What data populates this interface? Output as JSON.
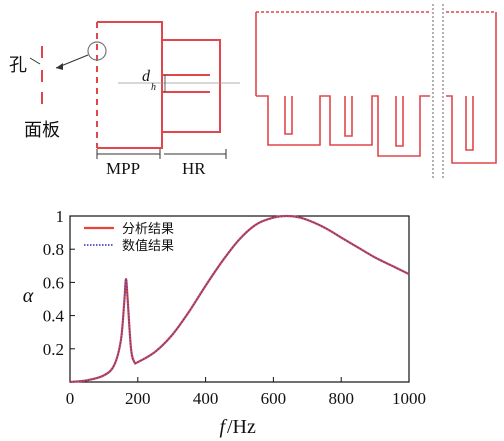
{
  "schematic": {
    "hole_label": "孔",
    "panel_label": "面板",
    "mpp_label": "MPP",
    "hr_label": "HR",
    "dim_symbol": "d",
    "dim_subscript": "h",
    "colors": {
      "structure": "#e0474c",
      "guide": "#999999"
    }
  },
  "chart_data": {
    "type": "line",
    "title": "",
    "xlabel_symbol": "f",
    "xlabel_unit": "/Hz",
    "ylabel": "α",
    "xlim": [
      0,
      1000
    ],
    "ylim": [
      0,
      1
    ],
    "xticks": [
      0,
      200,
      400,
      600,
      800,
      1000
    ],
    "yticks": [
      0.2,
      0.4,
      0.6,
      0.8,
      1
    ],
    "ytick_labels": [
      "0.2",
      "0.4",
      "0.6",
      "0.8",
      "1"
    ],
    "legend_position": "top-left",
    "grid": false,
    "series": [
      {
        "name": "分析结果",
        "color": "#e8443a",
        "style": "solid",
        "x": [
          0,
          50,
          100,
          130,
          150,
          160,
          165,
          170,
          180,
          190,
          200,
          250,
          300,
          350,
          400,
          450,
          500,
          550,
          600,
          640,
          680,
          720,
          760,
          800,
          850,
          900,
          950,
          1000
        ],
        "y": [
          0.0,
          0.01,
          0.04,
          0.1,
          0.25,
          0.48,
          0.62,
          0.5,
          0.2,
          0.12,
          0.12,
          0.18,
          0.28,
          0.42,
          0.58,
          0.73,
          0.86,
          0.95,
          0.99,
          1.0,
          0.99,
          0.96,
          0.92,
          0.87,
          0.81,
          0.75,
          0.7,
          0.65
        ]
      },
      {
        "name": "数值结果",
        "color": "#4a48b8",
        "style": "dotted",
        "x": [
          0,
          50,
          100,
          130,
          150,
          160,
          165,
          170,
          180,
          190,
          200,
          250,
          300,
          350,
          400,
          450,
          500,
          550,
          600,
          640,
          680,
          720,
          760,
          800,
          850,
          900,
          950,
          1000
        ],
        "y": [
          0.0,
          0.01,
          0.04,
          0.1,
          0.25,
          0.48,
          0.62,
          0.5,
          0.2,
          0.12,
          0.12,
          0.18,
          0.28,
          0.42,
          0.58,
          0.73,
          0.86,
          0.95,
          0.99,
          1.0,
          0.99,
          0.96,
          0.92,
          0.87,
          0.81,
          0.75,
          0.7,
          0.65
        ]
      }
    ]
  }
}
